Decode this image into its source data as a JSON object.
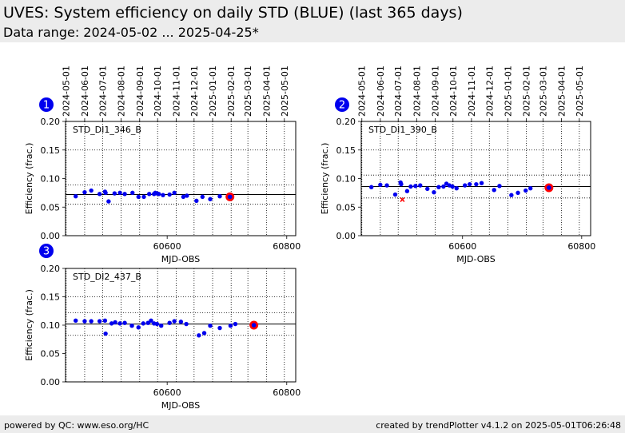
{
  "header": {
    "title": "UVES: System efficiency on daily STD (BLUE) (last 365 days)",
    "subtitle": "Data range: 2024-05-02 ... 2025-04-25*"
  },
  "footer": {
    "left": "powered by QC: www.eso.org/HC",
    "right": "created by trendPlotter v4.1.2 on 2025-05-01T06:26:48"
  },
  "colors": {
    "points": "#0000ee",
    "latest": "#ff0000",
    "outlier": "#ff0000",
    "badge": "#0000ee",
    "header_bg": "#ececec"
  },
  "chart_data": [
    {
      "type": "scatter",
      "badge": "1",
      "label": "STD_DI1_346_B",
      "xlabel": "MJD-OBS",
      "ylabel": "Efficiency (frac.)",
      "xlim": [
        60430,
        60815
      ],
      "ylim": [
        0.0,
        0.2
      ],
      "yticks": [
        "0.00",
        "0.05",
        "0.10",
        "0.15",
        "0.20"
      ],
      "xticks": [
        60600,
        60800
      ],
      "date_ticks": [
        {
          "label": "2024-05-01",
          "mjd": 60431
        },
        {
          "label": "2024-06-01",
          "mjd": 60462
        },
        {
          "label": "2024-07-01",
          "mjd": 60492
        },
        {
          "label": "2024-08-01",
          "mjd": 60523
        },
        {
          "label": "2024-09-01",
          "mjd": 60554
        },
        {
          "label": "2024-10-01",
          "mjd": 60584
        },
        {
          "label": "2024-11-01",
          "mjd": 60615
        },
        {
          "label": "2024-12-01",
          "mjd": 60645
        },
        {
          "label": "2025-01-01",
          "mjd": 60676
        },
        {
          "label": "2025-02-01",
          "mjd": 60707
        },
        {
          "label": "2025-03-01",
          "mjd": 60735
        },
        {
          "label": "2025-04-01",
          "mjd": 60766
        },
        {
          "label": "2025-05-01",
          "mjd": 60796
        }
      ],
      "hlines": [
        {
          "y": 0.072,
          "style": "solid"
        },
        {
          "y": 0.089,
          "style": "dotted"
        },
        {
          "y": 0.055,
          "style": "dotted"
        },
        {
          "y": 0.15,
          "style": "dotted"
        }
      ],
      "x": [
        60447,
        60462,
        60473,
        60487,
        60496,
        60497,
        60502,
        60512,
        60521,
        60529,
        60542,
        60552,
        60561,
        60570,
        60578,
        60580,
        60583,
        60586,
        60593,
        60604,
        60612,
        60627,
        60633,
        60649,
        60659,
        60672,
        60688,
        60705
      ],
      "y": [
        0.069,
        0.076,
        0.079,
        0.073,
        0.077,
        0.075,
        0.06,
        0.074,
        0.075,
        0.073,
        0.075,
        0.068,
        0.068,
        0.073,
        0.073,
        0.075,
        0.074,
        0.073,
        0.071,
        0.072,
        0.075,
        0.068,
        0.07,
        0.061,
        0.068,
        0.064,
        0.069,
        0.068
      ],
      "outliers": [],
      "latest": {
        "x": 60705,
        "y": 0.068
      }
    },
    {
      "type": "scatter",
      "badge": "2",
      "label": "STD_DI1_390_B",
      "xlabel": "MJD-OBS",
      "ylabel": "Efficiency (frac.)",
      "xlim": [
        60430,
        60815
      ],
      "ylim": [
        0.0,
        0.2
      ],
      "yticks": [
        "0.00",
        "0.05",
        "0.10",
        "0.15",
        "0.20"
      ],
      "xticks": [
        60600,
        60800
      ],
      "date_ticks": [
        {
          "label": "2024-05-01",
          "mjd": 60431
        },
        {
          "label": "2024-06-01",
          "mjd": 60462
        },
        {
          "label": "2024-07-01",
          "mjd": 60492
        },
        {
          "label": "2024-08-01",
          "mjd": 60523
        },
        {
          "label": "2024-09-01",
          "mjd": 60554
        },
        {
          "label": "2024-10-01",
          "mjd": 60584
        },
        {
          "label": "2024-11-01",
          "mjd": 60615
        },
        {
          "label": "2024-12-01",
          "mjd": 60645
        },
        {
          "label": "2025-01-01",
          "mjd": 60676
        },
        {
          "label": "2025-02-01",
          "mjd": 60707
        },
        {
          "label": "2025-03-01",
          "mjd": 60735
        },
        {
          "label": "2025-04-01",
          "mjd": 60766
        },
        {
          "label": "2025-05-01",
          "mjd": 60796
        }
      ],
      "hlines": [
        {
          "y": 0.086,
          "style": "solid"
        },
        {
          "y": 0.106,
          "style": "dotted"
        },
        {
          "y": 0.066,
          "style": "dotted"
        },
        {
          "y": 0.15,
          "style": "dotted"
        }
      ],
      "x": [
        60447,
        60462,
        60473,
        60487,
        60496,
        60497,
        60507,
        60513,
        60521,
        60529,
        60541,
        60552,
        60560,
        60568,
        60573,
        60578,
        60583,
        60590,
        60604,
        60612,
        60623,
        60632,
        60653,
        60662,
        60682,
        60693,
        60706,
        60714,
        60745
      ],
      "y": [
        0.085,
        0.089,
        0.088,
        0.072,
        0.093,
        0.09,
        0.078,
        0.086,
        0.087,
        0.088,
        0.082,
        0.076,
        0.085,
        0.086,
        0.091,
        0.088,
        0.086,
        0.083,
        0.088,
        0.09,
        0.09,
        0.092,
        0.08,
        0.087,
        0.071,
        0.075,
        0.079,
        0.083,
        0.084
      ],
      "outliers": [
        {
          "x": 60499,
          "y": 0.063
        }
      ],
      "latest": {
        "x": 60745,
        "y": 0.084
      }
    },
    {
      "type": "scatter",
      "badge": "3",
      "label": "STD_DI2_437_B",
      "xlabel": "MJD-OBS",
      "ylabel": "Efficiency (frac.)",
      "xlim": [
        60430,
        60815
      ],
      "ylim": [
        0.0,
        0.2
      ],
      "yticks": [
        "0.00",
        "0.05",
        "0.10",
        "0.15",
        "0.20"
      ],
      "xticks": [
        60600,
        60800
      ],
      "date_ticks": [
        {
          "label": "2024-05-01",
          "mjd": 60431
        },
        {
          "label": "2024-06-01",
          "mjd": 60462
        },
        {
          "label": "2024-07-01",
          "mjd": 60492
        },
        {
          "label": "2024-08-01",
          "mjd": 60523
        },
        {
          "label": "2024-09-01",
          "mjd": 60554
        },
        {
          "label": "2024-10-01",
          "mjd": 60584
        },
        {
          "label": "2024-11-01",
          "mjd": 60615
        },
        {
          "label": "2024-12-01",
          "mjd": 60645
        },
        {
          "label": "2025-01-01",
          "mjd": 60676
        },
        {
          "label": "2025-02-01",
          "mjd": 60707
        },
        {
          "label": "2025-03-01",
          "mjd": 60735
        },
        {
          "label": "2025-04-01",
          "mjd": 60766
        },
        {
          "label": "2025-05-01",
          "mjd": 60796
        }
      ],
      "hlines": [
        {
          "y": 0.102,
          "style": "solid"
        },
        {
          "y": 0.122,
          "style": "dotted"
        },
        {
          "y": 0.082,
          "style": "dotted"
        },
        {
          "y": 0.15,
          "style": "dotted"
        }
      ],
      "x": [
        60447,
        60462,
        60473,
        60487,
        60496,
        60497,
        60507,
        60513,
        60521,
        60529,
        60541,
        60552,
        60560,
        60568,
        60573,
        60578,
        60583,
        60590,
        60604,
        60612,
        60623,
        60632,
        60653,
        60662,
        60672,
        60688,
        60706,
        60714,
        60745
      ],
      "y": [
        0.108,
        0.107,
        0.107,
        0.107,
        0.108,
        0.085,
        0.103,
        0.105,
        0.103,
        0.104,
        0.099,
        0.096,
        0.103,
        0.104,
        0.108,
        0.103,
        0.102,
        0.099,
        0.104,
        0.107,
        0.106,
        0.102,
        0.082,
        0.086,
        0.099,
        0.095,
        0.099,
        0.102,
        0.1
      ],
      "outliers": [],
      "latest": {
        "x": 60745,
        "y": 0.1
      }
    }
  ]
}
